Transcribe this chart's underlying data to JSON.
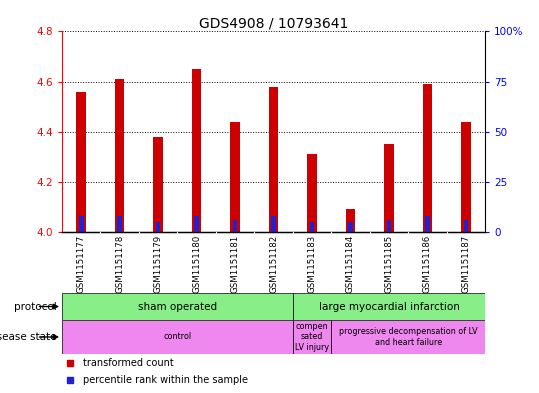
{
  "title": "GDS4908 / 10793641",
  "samples": [
    "GSM1151177",
    "GSM1151178",
    "GSM1151179",
    "GSM1151180",
    "GSM1151181",
    "GSM1151182",
    "GSM1151183",
    "GSM1151184",
    "GSM1151185",
    "GSM1151186",
    "GSM1151187"
  ],
  "transformed_counts": [
    4.56,
    4.61,
    4.38,
    4.65,
    4.44,
    4.58,
    4.31,
    4.09,
    4.35,
    4.59,
    4.44
  ],
  "percentile_ranks": [
    8,
    8,
    5,
    8,
    6,
    8,
    5,
    5,
    6,
    8,
    6
  ],
  "bar_base": 4.0,
  "ylim_left": [
    4.0,
    4.8
  ],
  "ylim_right": [
    0,
    100
  ],
  "yticks_left": [
    4.0,
    4.2,
    4.4,
    4.6,
    4.8
  ],
  "yticks_right": [
    0,
    25,
    50,
    75,
    100
  ],
  "ytick_labels_right": [
    "0",
    "25",
    "50",
    "75",
    "100%"
  ],
  "bar_color_red": "#cc0000",
  "bar_color_blue": "#2222cc",
  "background_color": "#ffffff",
  "gray_bg_color": "#c8c8c8",
  "dotted_grid_color": "#000000",
  "title_fontsize": 10,
  "tick_fontsize": 7.5,
  "bar_width": 0.25,
  "blue_bar_width": 0.12,
  "protocol_groups": [
    {
      "label": "sham operated",
      "start": 0,
      "end": 6,
      "color": "#88ee88"
    },
    {
      "label": "large myocardial infarction",
      "start": 6,
      "end": 11,
      "color": "#88ee88"
    }
  ],
  "disease_groups": [
    {
      "label": "control",
      "start": 0,
      "end": 6,
      "color": "#ee88ee"
    },
    {
      "label": "compen\nsated\nLV injury",
      "start": 6,
      "end": 7,
      "color": "#ee88ee"
    },
    {
      "label": "progressive decompensation of LV\nand heart failure",
      "start": 7,
      "end": 11,
      "color": "#ee88ee"
    }
  ]
}
